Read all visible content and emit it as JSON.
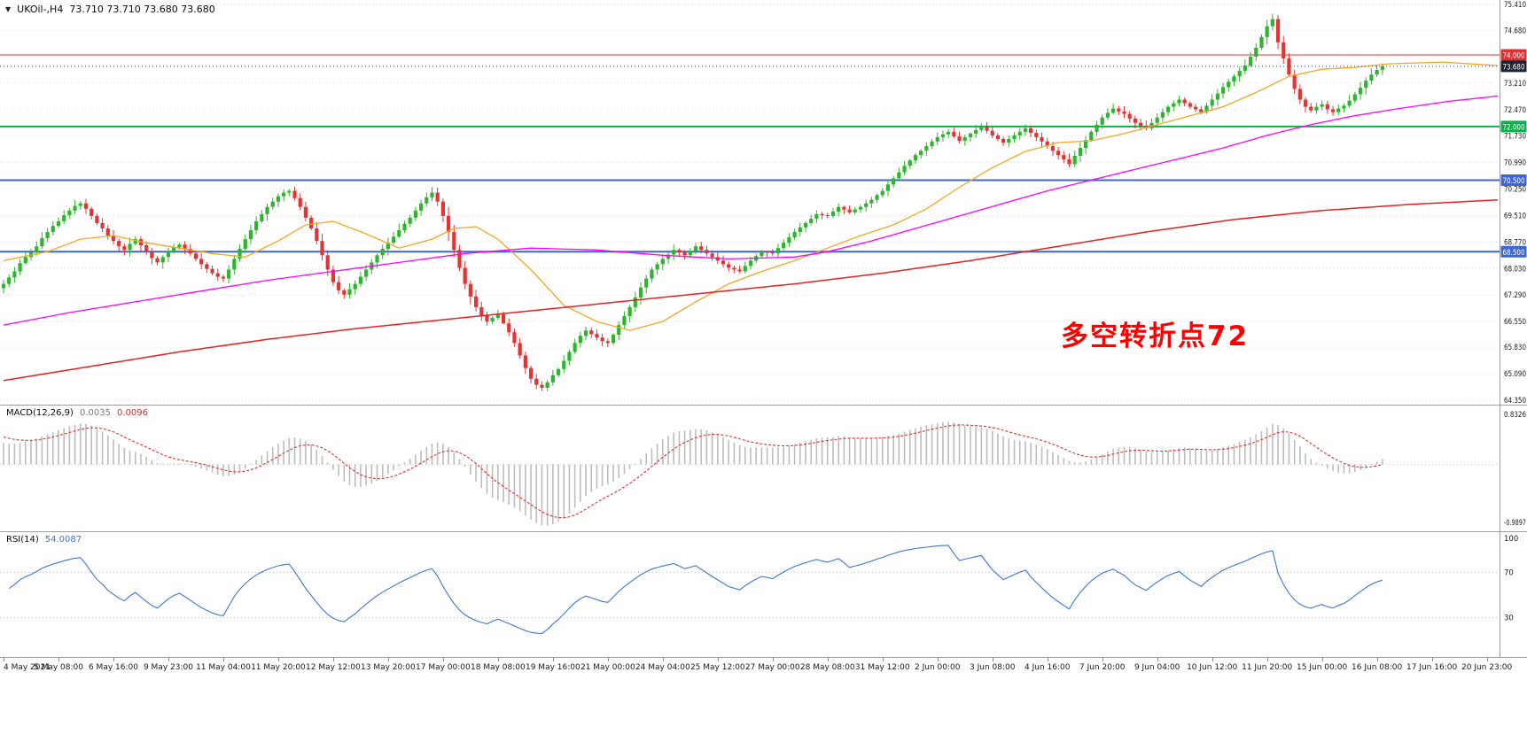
{
  "header": {
    "collapse_icon": "▼",
    "symbol": "UKOil-,H4",
    "ohlc": "73.710 73.710 73.680 73.680"
  },
  "annotation": {
    "text": "多空转折点72",
    "color": "#FF0000"
  },
  "macd": {
    "name": "MACD(12,26,9)",
    "value_main": "0.0035",
    "value_signal": "0.0096"
  },
  "rsi": {
    "name": "RSI(14)",
    "value": "54.0087"
  },
  "colors": {
    "background": "#FFFFFF",
    "grid": "#DCDCDC",
    "separator": "#9E9E9E",
    "axis_text": "#1A1A1A",
    "bull": "#2DB52D",
    "bear": "#E53333",
    "current_price_line": "#3C4654"
  },
  "chart_data": [
    {
      "type": "candlestick",
      "title": "UKOil- H4",
      "ylim": [
        64.35,
        75.41
      ],
      "y_axis_labels": [
        "75.410",
        "74.680",
        "73.210",
        "72.470",
        "71.730",
        "70.990",
        "70.250",
        "69.510",
        "68.770",
        "68.030",
        "67.290",
        "66.550",
        "65.830",
        "65.090",
        "64.350"
      ],
      "x_labels": [
        "4 May 2021",
        "5 May 08:00",
        "6 May 16:00",
        "9 May 23:00",
        "11 May 04:00",
        "11 May 20:00",
        "12 May 12:00",
        "13 May 20:00",
        "17 May 00:00",
        "18 May 08:00",
        "19 May 16:00",
        "21 May 00:00",
        "24 May 04:00",
        "25 May 12:00",
        "27 May 00:00",
        "28 May 08:00",
        "31 May 12:00",
        "2 Jun 00:00",
        "3 Jun 08:00",
        "4 Jun 16:00",
        "7 Jun 20:00",
        "9 Jun 04:00",
        "10 Jun 12:00",
        "11 Jun 20:00",
        "15 Jun 00:00",
        "16 Jun 08:00",
        "17 Jun 16:00",
        "20 Jun 23:00"
      ],
      "slots_per_label": 10,
      "total_slots": 272,
      "closes": [
        67.6,
        67.78,
        67.95,
        68.18,
        68.35,
        68.48,
        68.65,
        68.88,
        69.05,
        69.22,
        69.35,
        69.52,
        69.65,
        69.78,
        69.85,
        69.7,
        69.5,
        69.3,
        69.15,
        68.95,
        68.8,
        68.65,
        68.55,
        68.72,
        68.85,
        68.68,
        68.5,
        68.32,
        68.2,
        68.35,
        68.5,
        68.62,
        68.7,
        68.58,
        68.45,
        68.3,
        68.15,
        68.02,
        67.9,
        67.8,
        67.75,
        68.0,
        68.3,
        68.58,
        68.85,
        69.1,
        69.35,
        69.55,
        69.75,
        69.9,
        70.05,
        70.15,
        70.2,
        70.0,
        69.75,
        69.45,
        69.15,
        68.8,
        68.4,
        68.0,
        67.65,
        67.42,
        67.3,
        67.45,
        67.6,
        67.8,
        68.0,
        68.2,
        68.4,
        68.58,
        68.75,
        68.92,
        69.1,
        69.28,
        69.45,
        69.65,
        69.85,
        70.02,
        70.15,
        69.9,
        69.5,
        69.05,
        68.55,
        68.05,
        67.6,
        67.25,
        66.95,
        66.72,
        66.55,
        66.65,
        66.75,
        66.5,
        66.25,
        65.95,
        65.6,
        65.25,
        64.95,
        64.78,
        64.7,
        64.85,
        65.05,
        65.22,
        65.45,
        65.7,
        65.95,
        66.15,
        66.3,
        66.2,
        66.1,
        66.0,
        65.95,
        66.18,
        66.45,
        66.7,
        66.95,
        67.22,
        67.5,
        67.75,
        68.0,
        68.15,
        68.3,
        68.42,
        68.55,
        68.48,
        68.4,
        68.52,
        68.65,
        68.55,
        68.45,
        68.35,
        68.25,
        68.15,
        68.05,
        68.0,
        67.95,
        68.1,
        68.25,
        68.38,
        68.5,
        68.48,
        68.45,
        68.6,
        68.75,
        68.9,
        69.05,
        69.18,
        69.3,
        69.42,
        69.55,
        69.52,
        69.5,
        69.62,
        69.75,
        69.68,
        69.6,
        69.68,
        69.75,
        69.85,
        69.95,
        70.08,
        70.2,
        70.38,
        70.55,
        70.72,
        70.9,
        71.05,
        71.2,
        71.32,
        71.45,
        71.58,
        71.7,
        71.78,
        71.85,
        71.72,
        71.6,
        71.7,
        71.8,
        71.9,
        72.0,
        71.88,
        71.75,
        71.65,
        71.55,
        71.65,
        71.75,
        71.85,
        71.95,
        71.82,
        71.7,
        71.58,
        71.45,
        71.32,
        71.2,
        71.08,
        70.95,
        71.18,
        71.4,
        71.62,
        71.85,
        72.05,
        72.25,
        72.38,
        72.5,
        72.42,
        72.35,
        72.22,
        72.1,
        72.02,
        71.95,
        72.1,
        72.25,
        72.4,
        72.55,
        72.65,
        72.75,
        72.65,
        72.55,
        72.48,
        72.4,
        72.58,
        72.75,
        72.92,
        73.1,
        73.25,
        73.4,
        73.55,
        73.7,
        73.95,
        74.2,
        74.5,
        74.8,
        75.0,
        74.35,
        73.9,
        73.45,
        73.05,
        72.75,
        72.55,
        72.45,
        72.55,
        72.62,
        72.48,
        72.4,
        72.5,
        72.58,
        72.72,
        72.9,
        73.08,
        73.28,
        73.45,
        73.58,
        73.68
      ],
      "levels": [
        {
          "label": "74.000",
          "value": 74.0,
          "color": "#E03030",
          "width": 1
        },
        {
          "label": "72.000",
          "value": 72.0,
          "color": "#0FAF4E",
          "width": 2
        },
        {
          "label": "70.500",
          "value": 70.5,
          "color": "#3E66D0",
          "width": 2
        },
        {
          "label": "68.500",
          "value": 68.5,
          "color": "#3E66D0",
          "width": 2
        }
      ],
      "badges": [
        {
          "label": "74.000",
          "value": 74.0,
          "color": "#E03030"
        },
        {
          "label": "73.680",
          "value": 73.68,
          "color": "#1B2433"
        },
        {
          "label": "72.000",
          "value": 72.0,
          "color": "#0FAF4E"
        },
        {
          "label": "70.500",
          "value": 70.5,
          "color": "#3E66D0"
        },
        {
          "label": "68.500",
          "value": 68.5,
          "color": "#3E66D0"
        }
      ],
      "current_price": 73.68,
      "moving_averages": [
        {
          "name": "ma-fast-orange",
          "color": "#F5A623",
          "width": 1.3,
          "points": [
            [
              0,
              68.25
            ],
            [
              8,
              68.5
            ],
            [
              14,
              68.85
            ],
            [
              20,
              68.95
            ],
            [
              26,
              68.75
            ],
            [
              32,
              68.6
            ],
            [
              38,
              68.45
            ],
            [
              44,
              68.35
            ],
            [
              50,
              68.8
            ],
            [
              55,
              69.25
            ],
            [
              60,
              69.35
            ],
            [
              66,
              69.0
            ],
            [
              72,
              68.6
            ],
            [
              78,
              68.85
            ],
            [
              82,
              69.15
            ],
            [
              86,
              69.2
            ],
            [
              90,
              68.85
            ],
            [
              96,
              68.0
            ],
            [
              102,
              67.0
            ],
            [
              108,
              66.55
            ],
            [
              114,
              66.3
            ],
            [
              120,
              66.55
            ],
            [
              126,
              67.1
            ],
            [
              132,
              67.6
            ],
            [
              138,
              67.95
            ],
            [
              144,
              68.25
            ],
            [
              150,
              68.6
            ],
            [
              156,
              68.95
            ],
            [
              162,
              69.25
            ],
            [
              168,
              69.7
            ],
            [
              174,
              70.3
            ],
            [
              180,
              70.85
            ],
            [
              186,
              71.3
            ],
            [
              192,
              71.55
            ],
            [
              198,
              71.6
            ],
            [
              204,
              71.8
            ],
            [
              210,
              72.05
            ],
            [
              216,
              72.3
            ],
            [
              222,
              72.55
            ],
            [
              228,
              72.95
            ],
            [
              234,
              73.4
            ],
            [
              240,
              73.6
            ],
            [
              246,
              73.65
            ],
            [
              252,
              73.75
            ],
            [
              262,
              73.8
            ],
            [
              272,
              73.7
            ]
          ]
        },
        {
          "name": "ma-mid-magenta",
          "color": "#FF00FF",
          "width": 1.3,
          "points": [
            [
              0,
              66.45
            ],
            [
              12,
              66.8
            ],
            [
              24,
              67.1
            ],
            [
              36,
              67.4
            ],
            [
              48,
              67.7
            ],
            [
              60,
              67.95
            ],
            [
              72,
              68.2
            ],
            [
              84,
              68.45
            ],
            [
              96,
              68.6
            ],
            [
              108,
              68.55
            ],
            [
              120,
              68.4
            ],
            [
              132,
              68.3
            ],
            [
              144,
              68.35
            ],
            [
              150,
              68.5
            ],
            [
              158,
              68.8
            ],
            [
              166,
              69.15
            ],
            [
              174,
              69.5
            ],
            [
              182,
              69.85
            ],
            [
              190,
              70.2
            ],
            [
              198,
              70.5
            ],
            [
              206,
              70.8
            ],
            [
              214,
              71.1
            ],
            [
              222,
              71.4
            ],
            [
              230,
              71.75
            ],
            [
              238,
              72.05
            ],
            [
              246,
              72.3
            ],
            [
              254,
              72.5
            ],
            [
              263,
              72.7
            ],
            [
              272,
              72.85
            ]
          ]
        },
        {
          "name": "ma-slow-red",
          "color": "#E82020",
          "width": 1.5,
          "points": [
            [
              0,
              64.9
            ],
            [
              16,
              65.3
            ],
            [
              32,
              65.7
            ],
            [
              48,
              66.05
            ],
            [
              64,
              66.35
            ],
            [
              80,
              66.6
            ],
            [
              96,
              66.85
            ],
            [
              112,
              67.1
            ],
            [
              128,
              67.35
            ],
            [
              144,
              67.6
            ],
            [
              160,
              67.9
            ],
            [
              176,
              68.25
            ],
            [
              192,
              68.65
            ],
            [
              208,
              69.05
            ],
            [
              224,
              69.4
            ],
            [
              240,
              69.65
            ],
            [
              256,
              69.82
            ],
            [
              272,
              69.95
            ]
          ]
        }
      ]
    },
    {
      "type": "macd",
      "label": "MACD(12,26,9)",
      "params": [
        12,
        26,
        9
      ],
      "current_values": [
        0.0035,
        0.0096
      ],
      "axis_labels": {
        "max": "0.8326",
        "min": "-0.9897"
      },
      "ylim": [
        -0.9897,
        0.8326
      ],
      "histogram_color": "#BDBDBD",
      "signal_color": "#E03030"
    },
    {
      "type": "rsi",
      "label": "RSI(14)",
      "period": 14,
      "current_value": 54.0087,
      "levels": [
        70,
        30
      ],
      "axis_labels": [
        "100",
        "70",
        "30"
      ],
      "ylim": [
        0,
        100
      ],
      "line_color": "#3E76D8"
    }
  ]
}
